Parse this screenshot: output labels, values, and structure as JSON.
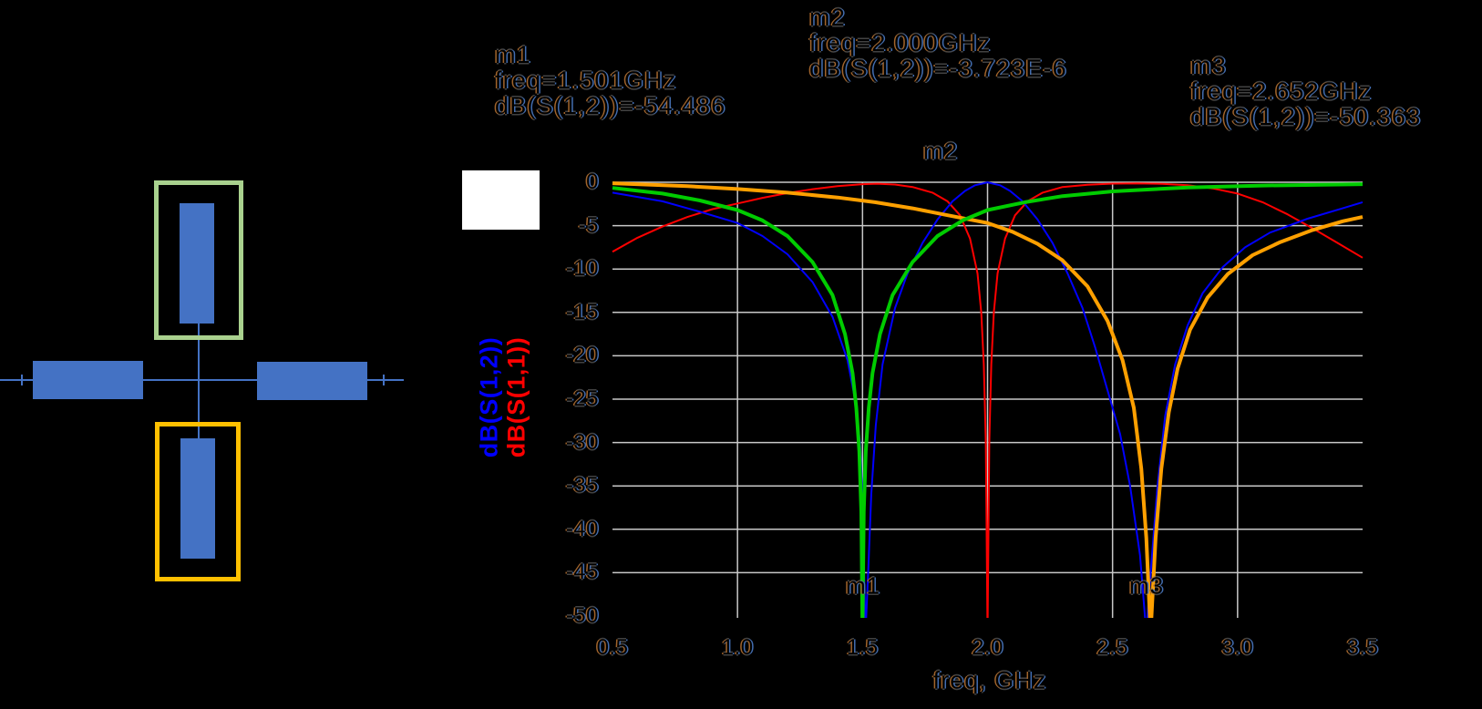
{
  "colors": {
    "background": "#000000",
    "grid": "#C8C8C8",
    "curve_blue": "#0000FF",
    "curve_red": "#FF0000",
    "curve_green": "#00CC00",
    "curve_orange": "#FFA000",
    "schematic_blue": "#4472C4",
    "highlight_green": "#A9D18E",
    "highlight_orange": "#FFC000",
    "white_box": "#FFFFFF",
    "ylabel_s12_color": "#0000FF",
    "ylabel_s11_color": "#FF0000"
  },
  "schematic": {
    "description_colors": {
      "stub_fill": "#4472C4",
      "stub1_outline": "#A9D18E",
      "stub2_outline": "#FFC000"
    }
  },
  "chart_data": {
    "type": "line",
    "xlabel": "freq, GHz",
    "ylabel_blue": "dB(S(1,2))",
    "ylabel_red": "dB(S(1,1))",
    "xlim": [
      0.5,
      3.5
    ],
    "ylim": [
      -50,
      0
    ],
    "grid": true,
    "legend_position": "none",
    "x_ticks": [
      {
        "label": "0.5",
        "value": 0.5
      },
      {
        "label": "1.0",
        "value": 1.0
      },
      {
        "label": "1.5",
        "value": 1.5
      },
      {
        "label": "2.0",
        "value": 2.0
      },
      {
        "label": "2.5",
        "value": 2.5
      },
      {
        "label": "3.0",
        "value": 3.0
      },
      {
        "label": "3.5",
        "value": 3.5
      }
    ],
    "y_ticks": [
      {
        "label": "0",
        "value": 0
      },
      {
        "label": "-5",
        "value": -5
      },
      {
        "label": "-10",
        "value": -10
      },
      {
        "label": "-15",
        "value": -15
      },
      {
        "label": "-20",
        "value": -20
      },
      {
        "label": "-25",
        "value": -25
      },
      {
        "label": "-30",
        "value": -30
      },
      {
        "label": "-35",
        "value": -35
      },
      {
        "label": "-40",
        "value": -40
      },
      {
        "label": "-45",
        "value": -45
      },
      {
        "label": "-50",
        "value": -50
      }
    ],
    "grid_x": [
      1.0,
      1.5,
      2.0,
      2.5,
      3.0
    ],
    "grid_y": [
      0,
      -5,
      -10,
      -15,
      -20,
      -25,
      -30,
      -35,
      -40,
      -45
    ],
    "markers": [
      {
        "label": "m1",
        "freq_text": "freq=1.501GHz",
        "value_text": "dB(S(1,2))=-54.486",
        "freq_ghz": 1.501,
        "value_db": -54.486
      },
      {
        "label": "m2",
        "freq_text": "freq=2.000GHz",
        "value_text": "dB(S(1,2))=-3.723E-6",
        "freq_ghz": 2.0,
        "value_db": -3.723e-06
      },
      {
        "label": "m3",
        "freq_text": "freq=2.652GHz",
        "value_text": "dB(S(1,2))=-50.363",
        "freq_ghz": 2.652,
        "value_db": -50.363
      }
    ],
    "series": [
      {
        "id": "red-s11",
        "name": "dB(S(1,1))",
        "color": "#FF0000",
        "width": 2,
        "points": [
          [
            0.5,
            -8.0
          ],
          [
            0.6,
            -6.4
          ],
          [
            0.7,
            -5.1
          ],
          [
            0.8,
            -4.0
          ],
          [
            0.9,
            -3.1
          ],
          [
            1.0,
            -2.45
          ],
          [
            1.1,
            -1.8
          ],
          [
            1.2,
            -1.25
          ],
          [
            1.3,
            -0.8
          ],
          [
            1.4,
            -0.45
          ],
          [
            1.5,
            -0.22
          ],
          [
            1.56,
            -0.17
          ],
          [
            1.63,
            -0.26
          ],
          [
            1.7,
            -0.55
          ],
          [
            1.78,
            -1.2
          ],
          [
            1.84,
            -2.2
          ],
          [
            1.89,
            -3.8
          ],
          [
            1.93,
            -6.5
          ],
          [
            1.96,
            -10.5
          ],
          [
            1.975,
            -15
          ],
          [
            1.985,
            -21
          ],
          [
            1.993,
            -30
          ],
          [
            2.0,
            -52
          ],
          [
            2.007,
            -30
          ],
          [
            2.015,
            -21
          ],
          [
            2.025,
            -15
          ],
          [
            2.04,
            -10.5
          ],
          [
            2.07,
            -6.5
          ],
          [
            2.11,
            -3.8
          ],
          [
            2.16,
            -2.2
          ],
          [
            2.22,
            -1.2
          ],
          [
            2.3,
            -0.55
          ],
          [
            2.4,
            -0.28
          ],
          [
            2.5,
            -0.16
          ],
          [
            2.6,
            -0.13
          ],
          [
            2.7,
            -0.18
          ],
          [
            2.8,
            -0.35
          ],
          [
            2.9,
            -0.7
          ],
          [
            3.0,
            -1.3
          ],
          [
            3.1,
            -2.3
          ],
          [
            3.2,
            -3.7
          ],
          [
            3.3,
            -5.3
          ],
          [
            3.4,
            -7.0
          ],
          [
            3.5,
            -8.7
          ]
        ]
      },
      {
        "id": "blue-s12",
        "name": "dB(S(1,2))",
        "color": "#0000FF",
        "width": 2,
        "points": [
          [
            0.5,
            -1.2
          ],
          [
            0.7,
            -2.2
          ],
          [
            0.85,
            -3.4
          ],
          [
            1.0,
            -4.7
          ],
          [
            1.1,
            -6.2
          ],
          [
            1.2,
            -8.3
          ],
          [
            1.3,
            -11.5
          ],
          [
            1.38,
            -15.5
          ],
          [
            1.44,
            -20.5
          ],
          [
            1.47,
            -25
          ],
          [
            1.49,
            -30
          ],
          [
            1.5,
            -36
          ],
          [
            1.512,
            -52
          ],
          [
            1.524,
            -44
          ],
          [
            1.535,
            -36
          ],
          [
            1.553,
            -28
          ],
          [
            1.58,
            -21
          ],
          [
            1.63,
            -14.5
          ],
          [
            1.68,
            -10.5
          ],
          [
            1.74,
            -7
          ],
          [
            1.8,
            -4.3
          ],
          [
            1.86,
            -2.2
          ],
          [
            1.91,
            -1.0
          ],
          [
            1.95,
            -0.35
          ],
          [
            2.0,
            -0.01
          ],
          [
            2.05,
            -0.35
          ],
          [
            2.09,
            -1.0
          ],
          [
            2.14,
            -2.2
          ],
          [
            2.2,
            -4.3
          ],
          [
            2.26,
            -7
          ],
          [
            2.32,
            -10.5
          ],
          [
            2.38,
            -14.5
          ],
          [
            2.43,
            -19
          ],
          [
            2.48,
            -24
          ],
          [
            2.53,
            -29
          ],
          [
            2.57,
            -35
          ],
          [
            2.61,
            -43
          ],
          [
            2.635,
            -52
          ],
          [
            2.655,
            -44
          ],
          [
            2.68,
            -35
          ],
          [
            2.71,
            -27
          ],
          [
            2.75,
            -21
          ],
          [
            2.8,
            -16.5
          ],
          [
            2.86,
            -12.8
          ],
          [
            2.94,
            -9.8
          ],
          [
            3.03,
            -7.5
          ],
          [
            3.13,
            -5.8
          ],
          [
            3.28,
            -4.2
          ],
          [
            3.42,
            -3.0
          ],
          [
            3.5,
            -2.3
          ]
        ]
      },
      {
        "id": "orange-s12",
        "name": "dB(S(1,2))",
        "color": "#FFA000",
        "width": 4,
        "points": [
          [
            0.5,
            -0.12
          ],
          [
            0.8,
            -0.45
          ],
          [
            1.0,
            -0.78
          ],
          [
            1.2,
            -1.2
          ],
          [
            1.4,
            -1.75
          ],
          [
            1.55,
            -2.3
          ],
          [
            1.7,
            -3.0
          ],
          [
            1.85,
            -3.85
          ],
          [
            2.0,
            -4.7
          ],
          [
            2.1,
            -5.7
          ],
          [
            2.2,
            -7.1
          ],
          [
            2.3,
            -9.0
          ],
          [
            2.4,
            -12
          ],
          [
            2.48,
            -16
          ],
          [
            2.54,
            -20.5
          ],
          [
            2.585,
            -26
          ],
          [
            2.615,
            -33
          ],
          [
            2.635,
            -41
          ],
          [
            2.652,
            -52
          ],
          [
            2.672,
            -41
          ],
          [
            2.695,
            -33
          ],
          [
            2.725,
            -26.5
          ],
          [
            2.76,
            -21.5
          ],
          [
            2.81,
            -17
          ],
          [
            2.88,
            -13.3
          ],
          [
            2.96,
            -10.6
          ],
          [
            3.06,
            -8.4
          ],
          [
            3.17,
            -6.9
          ],
          [
            3.3,
            -5.5
          ],
          [
            3.42,
            -4.5
          ],
          [
            3.5,
            -4.0
          ]
        ]
      },
      {
        "id": "green-s12",
        "name": "dB(S(1,2))",
        "color": "#00CC00",
        "width": 4,
        "points": [
          [
            0.5,
            -0.65
          ],
          [
            0.7,
            -1.3
          ],
          [
            0.85,
            -2.1
          ],
          [
            1.0,
            -3.2
          ],
          [
            1.1,
            -4.4
          ],
          [
            1.2,
            -6.2
          ],
          [
            1.3,
            -9.2
          ],
          [
            1.38,
            -13
          ],
          [
            1.43,
            -17.5
          ],
          [
            1.46,
            -22
          ],
          [
            1.475,
            -26
          ],
          [
            1.487,
            -31
          ],
          [
            1.495,
            -38
          ],
          [
            1.5,
            -52
          ],
          [
            1.505,
            -38
          ],
          [
            1.513,
            -31
          ],
          [
            1.525,
            -26
          ],
          [
            1.54,
            -22
          ],
          [
            1.57,
            -17.5
          ],
          [
            1.62,
            -13
          ],
          [
            1.7,
            -9.2
          ],
          [
            1.8,
            -6.2
          ],
          [
            1.9,
            -4.4
          ],
          [
            2.0,
            -3.2
          ],
          [
            2.15,
            -2.3
          ],
          [
            2.3,
            -1.6
          ],
          [
            2.5,
            -1.05
          ],
          [
            2.8,
            -0.6
          ],
          [
            3.1,
            -0.38
          ],
          [
            3.5,
            -0.22
          ]
        ]
      }
    ]
  }
}
